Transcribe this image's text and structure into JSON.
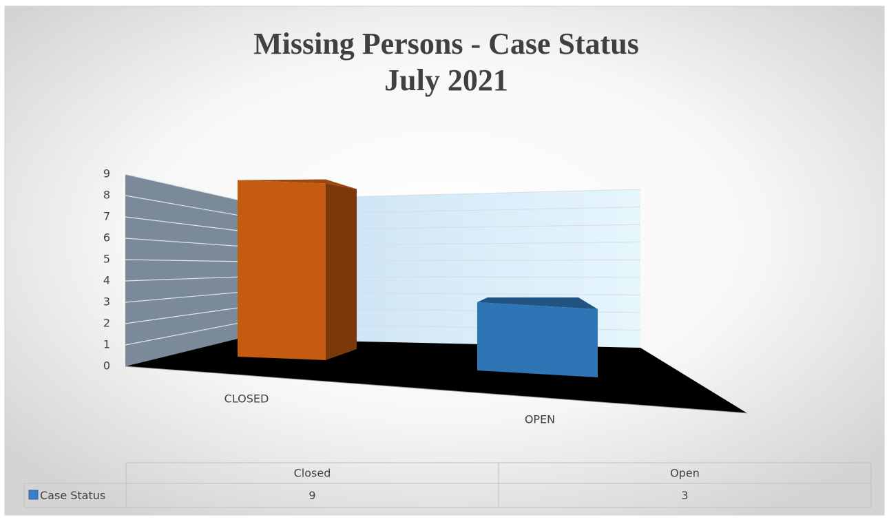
{
  "chart_data": {
    "type": "bar3d",
    "title": [
      "Missing Persons - Case Status",
      "July 2021"
    ],
    "categories": [
      "CLOSED",
      "OPEN"
    ],
    "series": [
      {
        "name": "Case Status",
        "color": "#3a80c6",
        "colors": [
          "#c55a11",
          "#2e75b6"
        ],
        "values": [
          9,
          3
        ]
      }
    ],
    "ylim": [
      0,
      9
    ],
    "yticks": [
      0,
      1,
      2,
      3,
      4,
      5,
      6,
      7,
      8,
      9
    ],
    "grid": true,
    "table": {
      "columns": [
        "Closed",
        "Open"
      ]
    }
  }
}
